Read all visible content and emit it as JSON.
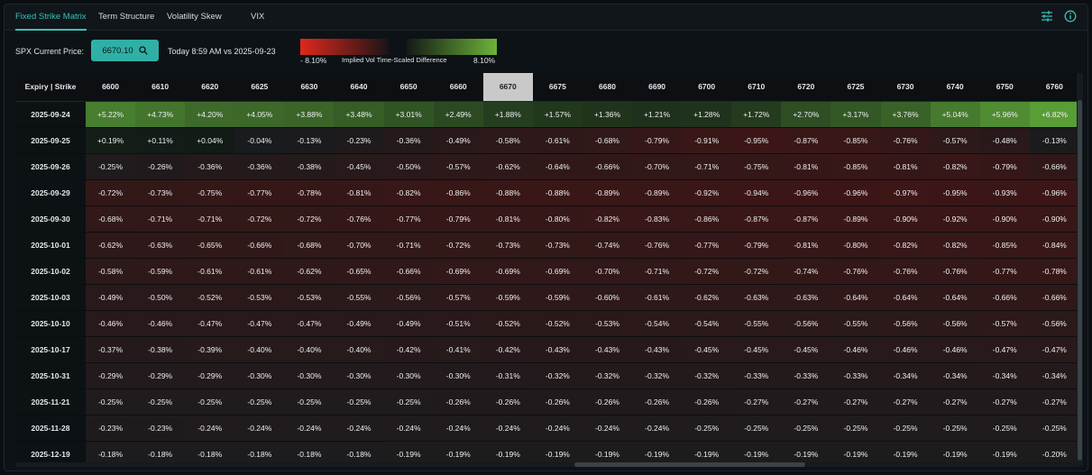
{
  "tabs": [
    {
      "label": "Fixed Strike Matrix",
      "active": true
    },
    {
      "label": "Term Structure",
      "active": false
    },
    {
      "label": "Volatility Skew",
      "active": false
    },
    {
      "label": "VIX",
      "active": false
    }
  ],
  "toolbar": {
    "price_label": "SPX Current Price:",
    "price_value": "6670.10",
    "comparison": "Today 8:59 AM vs 2025-09-23",
    "legend_min": "- 8.10%",
    "legend_title": "Implied Vol Time-Scaled Difference",
    "legend_max": "8.10%",
    "neg_color": "#e0281c",
    "pos_color": "#6db33a"
  },
  "grid": {
    "corner_label": "Expiry | Strike",
    "selected_strike": "6670",
    "strikes": [
      "6600",
      "6610",
      "6620",
      "6625",
      "6630",
      "6640",
      "6650",
      "6660",
      "6670",
      "6675",
      "6680",
      "6690",
      "6700",
      "6710",
      "6720",
      "6725",
      "6730",
      "6740",
      "6750",
      "6760"
    ],
    "rows": [
      {
        "expiry": "2025-09-24",
        "values": [
          "+5.22%",
          "+4.73%",
          "+4.20%",
          "+4.05%",
          "+3.88%",
          "+3.48%",
          "+3.01%",
          "+2.49%",
          "+1.88%",
          "+1.57%",
          "+1.36%",
          "+1.21%",
          "+1.28%",
          "+1.72%",
          "+2.70%",
          "+3.17%",
          "+3.76%",
          "+5.04%",
          "+5.96%",
          "+6.82%"
        ]
      },
      {
        "expiry": "2025-09-25",
        "values": [
          "+0.19%",
          "+0.11%",
          "+0.04%",
          "-0.04%",
          "-0.13%",
          "-0.23%",
          "-0.36%",
          "-0.49%",
          "-0.58%",
          "-0.61%",
          "-0.68%",
          "-0.79%",
          "-0.91%",
          "-0.95%",
          "-0.87%",
          "-0.85%",
          "-0.76%",
          "-0.57%",
          "-0.48%",
          "-0.13%"
        ]
      },
      {
        "expiry": "2025-09-26",
        "values": [
          "-0.25%",
          "-0.26%",
          "-0.36%",
          "-0.36%",
          "-0.38%",
          "-0.45%",
          "-0.50%",
          "-0.57%",
          "-0.62%",
          "-0.64%",
          "-0.66%",
          "-0.70%",
          "-0.71%",
          "-0.75%",
          "-0.81%",
          "-0.85%",
          "-0.81%",
          "-0.82%",
          "-0.79%",
          "-0.66%"
        ]
      },
      {
        "expiry": "2025-09-29",
        "values": [
          "-0.72%",
          "-0.73%",
          "-0.75%",
          "-0.77%",
          "-0.78%",
          "-0.81%",
          "-0.82%",
          "-0.86%",
          "-0.88%",
          "-0.88%",
          "-0.89%",
          "-0.89%",
          "-0.92%",
          "-0.94%",
          "-0.96%",
          "-0.96%",
          "-0.97%",
          "-0.95%",
          "-0.93%",
          "-0.96%"
        ]
      },
      {
        "expiry": "2025-09-30",
        "values": [
          "-0.68%",
          "-0.71%",
          "-0.71%",
          "-0.72%",
          "-0.72%",
          "-0.76%",
          "-0.77%",
          "-0.79%",
          "-0.81%",
          "-0.80%",
          "-0.82%",
          "-0.83%",
          "-0.86%",
          "-0.87%",
          "-0.87%",
          "-0.89%",
          "-0.90%",
          "-0.92%",
          "-0.90%",
          "-0.90%"
        ]
      },
      {
        "expiry": "2025-10-01",
        "values": [
          "-0.62%",
          "-0.63%",
          "-0.65%",
          "-0.66%",
          "-0.68%",
          "-0.70%",
          "-0.71%",
          "-0.72%",
          "-0.73%",
          "-0.73%",
          "-0.74%",
          "-0.76%",
          "-0.77%",
          "-0.79%",
          "-0.81%",
          "-0.80%",
          "-0.82%",
          "-0.82%",
          "-0.85%",
          "-0.84%"
        ]
      },
      {
        "expiry": "2025-10-02",
        "values": [
          "-0.58%",
          "-0.59%",
          "-0.61%",
          "-0.61%",
          "-0.62%",
          "-0.65%",
          "-0.66%",
          "-0.69%",
          "-0.69%",
          "-0.69%",
          "-0.70%",
          "-0.71%",
          "-0.72%",
          "-0.72%",
          "-0.74%",
          "-0.76%",
          "-0.76%",
          "-0.76%",
          "-0.77%",
          "-0.78%"
        ]
      },
      {
        "expiry": "2025-10-03",
        "values": [
          "-0.49%",
          "-0.50%",
          "-0.52%",
          "-0.53%",
          "-0.53%",
          "-0.55%",
          "-0.56%",
          "-0.57%",
          "-0.59%",
          "-0.59%",
          "-0.60%",
          "-0.61%",
          "-0.62%",
          "-0.63%",
          "-0.63%",
          "-0.64%",
          "-0.64%",
          "-0.64%",
          "-0.66%",
          "-0.66%"
        ]
      },
      {
        "expiry": "2025-10-10",
        "values": [
          "-0.46%",
          "-0.46%",
          "-0.47%",
          "-0.47%",
          "-0.47%",
          "-0.49%",
          "-0.49%",
          "-0.51%",
          "-0.52%",
          "-0.52%",
          "-0.53%",
          "-0.54%",
          "-0.54%",
          "-0.55%",
          "-0.56%",
          "-0.55%",
          "-0.56%",
          "-0.56%",
          "-0.57%",
          "-0.56%"
        ]
      },
      {
        "expiry": "2025-10-17",
        "values": [
          "-0.37%",
          "-0.38%",
          "-0.39%",
          "-0.40%",
          "-0.40%",
          "-0.40%",
          "-0.42%",
          "-0.41%",
          "-0.42%",
          "-0.43%",
          "-0.43%",
          "-0.43%",
          "-0.45%",
          "-0.45%",
          "-0.45%",
          "-0.46%",
          "-0.46%",
          "-0.46%",
          "-0.47%",
          "-0.47%"
        ]
      },
      {
        "expiry": "2025-10-31",
        "values": [
          "-0.29%",
          "-0.29%",
          "-0.29%",
          "-0.30%",
          "-0.30%",
          "-0.30%",
          "-0.30%",
          "-0.30%",
          "-0.31%",
          "-0.32%",
          "-0.32%",
          "-0.32%",
          "-0.32%",
          "-0.33%",
          "-0.33%",
          "-0.33%",
          "-0.34%",
          "-0.34%",
          "-0.34%",
          "-0.34%"
        ]
      },
      {
        "expiry": "2025-11-21",
        "values": [
          "-0.25%",
          "-0.25%",
          "-0.25%",
          "-0.25%",
          "-0.25%",
          "-0.25%",
          "-0.25%",
          "-0.26%",
          "-0.26%",
          "-0.26%",
          "-0.26%",
          "-0.26%",
          "-0.26%",
          "-0.27%",
          "-0.27%",
          "-0.27%",
          "-0.27%",
          "-0.27%",
          "-0.27%",
          "-0.27%"
        ]
      },
      {
        "expiry": "2025-11-28",
        "values": [
          "-0.23%",
          "-0.23%",
          "-0.24%",
          "-0.24%",
          "-0.24%",
          "-0.24%",
          "-0.24%",
          "-0.24%",
          "-0.24%",
          "-0.24%",
          "-0.24%",
          "-0.24%",
          "-0.25%",
          "-0.25%",
          "-0.25%",
          "-0.25%",
          "-0.25%",
          "-0.25%",
          "-0.25%",
          "-0.25%"
        ]
      },
      {
        "expiry": "2025-12-19",
        "values": [
          "-0.18%",
          "-0.18%",
          "-0.18%",
          "-0.18%",
          "-0.18%",
          "-0.18%",
          "-0.19%",
          "-0.19%",
          "-0.19%",
          "-0.19%",
          "-0.19%",
          "-0.19%",
          "-0.19%",
          "-0.19%",
          "-0.19%",
          "-0.19%",
          "-0.19%",
          "-0.19%",
          "-0.19%",
          "-0.20%"
        ]
      }
    ]
  }
}
